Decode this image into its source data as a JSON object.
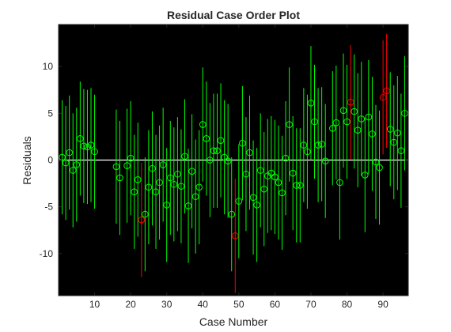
{
  "chart_data": {
    "type": "scatter",
    "title": "Residual Case Order Plot",
    "xlabel": "Case Number",
    "ylabel": "Residuals",
    "xlim": [
      0,
      97
    ],
    "ylim": [
      -14.5,
      14.5
    ],
    "xticks": [
      10,
      20,
      30,
      40,
      50,
      60,
      70,
      80,
      90
    ],
    "yticks": [
      -10,
      -5,
      0,
      5,
      10
    ],
    "grid": false,
    "background": "#000000",
    "zero_line_color": "#ffffff",
    "normal_color": "#00ff00",
    "outlier_color": "#ff0000",
    "interval_half_width": 6.1,
    "points": [
      {
        "x": 1,
        "y": 0.3
      },
      {
        "x": 2,
        "y": -0.3
      },
      {
        "x": 3,
        "y": 0.8
      },
      {
        "x": 4,
        "y": -1.1
      },
      {
        "x": 5,
        "y": -0.5
      },
      {
        "x": 6,
        "y": 2.3
      },
      {
        "x": 7,
        "y": 1.5
      },
      {
        "x": 8,
        "y": 1.4
      },
      {
        "x": 9,
        "y": 1.6
      },
      {
        "x": 10,
        "y": 0.9
      },
      {
        "x": 16,
        "y": -0.7
      },
      {
        "x": 17,
        "y": -1.9
      },
      {
        "x": 19,
        "y": -0.6
      },
      {
        "x": 20,
        "y": 0.2
      },
      {
        "x": 21,
        "y": -3.4
      },
      {
        "x": 22,
        "y": -2.1
      },
      {
        "x": 23,
        "y": -6.4,
        "outlier": true
      },
      {
        "x": 24,
        "y": -5.8
      },
      {
        "x": 25,
        "y": -2.9
      },
      {
        "x": 26,
        "y": -0.9
      },
      {
        "x": 27,
        "y": -3.4
      },
      {
        "x": 28,
        "y": -2.4
      },
      {
        "x": 29,
        "y": -0.5
      },
      {
        "x": 30,
        "y": -4.8
      },
      {
        "x": 31,
        "y": -1.9
      },
      {
        "x": 32,
        "y": -2.6
      },
      {
        "x": 33,
        "y": -1.5
      },
      {
        "x": 34,
        "y": -2.8
      },
      {
        "x": 35,
        "y": 0.4
      },
      {
        "x": 36,
        "y": -4.9
      },
      {
        "x": 37,
        "y": -1.2
      },
      {
        "x": 38,
        "y": -3.9
      },
      {
        "x": 39,
        "y": -2.9
      },
      {
        "x": 40,
        "y": 3.8
      },
      {
        "x": 41,
        "y": 2.3
      },
      {
        "x": 42,
        "y": 0.0
      },
      {
        "x": 43,
        "y": 1.0
      },
      {
        "x": 44,
        "y": 1.0
      },
      {
        "x": 45,
        "y": 2.1
      },
      {
        "x": 46,
        "y": 0.3
      },
      {
        "x": 47,
        "y": -0.1
      },
      {
        "x": 48,
        "y": -5.8
      },
      {
        "x": 49,
        "y": -8.1,
        "outlier": true
      },
      {
        "x": 50,
        "y": -4.4
      },
      {
        "x": 51,
        "y": 1.8
      },
      {
        "x": 52,
        "y": -1.5
      },
      {
        "x": 53,
        "y": 0.8
      },
      {
        "x": 54,
        "y": -4.0
      },
      {
        "x": 55,
        "y": -4.8
      },
      {
        "x": 56,
        "y": -1.1
      },
      {
        "x": 57,
        "y": -3.1
      },
      {
        "x": 58,
        "y": -1.7
      },
      {
        "x": 59,
        "y": -1.4
      },
      {
        "x": 60,
        "y": -1.8
      },
      {
        "x": 61,
        "y": -2.4
      },
      {
        "x": 62,
        "y": -3.5
      },
      {
        "x": 63,
        "y": 0.2
      },
      {
        "x": 64,
        "y": 3.8
      },
      {
        "x": 65,
        "y": -1.4
      },
      {
        "x": 66,
        "y": -2.7
      },
      {
        "x": 67,
        "y": -2.7
      },
      {
        "x": 68,
        "y": 1.6
      },
      {
        "x": 69,
        "y": 0.9
      },
      {
        "x": 70,
        "y": 6.1
      },
      {
        "x": 71,
        "y": 4.1
      },
      {
        "x": 72,
        "y": 1.6
      },
      {
        "x": 73,
        "y": 1.7
      },
      {
        "x": 74,
        "y": -0.1
      },
      {
        "x": 76,
        "y": 3.4
      },
      {
        "x": 77,
        "y": 4.0
      },
      {
        "x": 78,
        "y": -2.4
      },
      {
        "x": 79,
        "y": 5.3
      },
      {
        "x": 80,
        "y": 4.1
      },
      {
        "x": 81,
        "y": 6.2,
        "outlier": true
      },
      {
        "x": 82,
        "y": 5.2
      },
      {
        "x": 83,
        "y": 3.2
      },
      {
        "x": 84,
        "y": 4.4
      },
      {
        "x": 85,
        "y": -1.6
      },
      {
        "x": 86,
        "y": 4.6
      },
      {
        "x": 87,
        "y": 2.8
      },
      {
        "x": 88,
        "y": -0.2
      },
      {
        "x": 89,
        "y": -0.8
      },
      {
        "x": 90,
        "y": 6.7,
        "outlier": true
      },
      {
        "x": 91,
        "y": 7.4,
        "outlier": true
      },
      {
        "x": 92,
        "y": 3.3
      },
      {
        "x": 93,
        "y": 1.9
      },
      {
        "x": 94,
        "y": 2.9
      },
      {
        "x": 95,
        "y": 1.0
      },
      {
        "x": 96,
        "y": 5.0
      }
    ]
  }
}
